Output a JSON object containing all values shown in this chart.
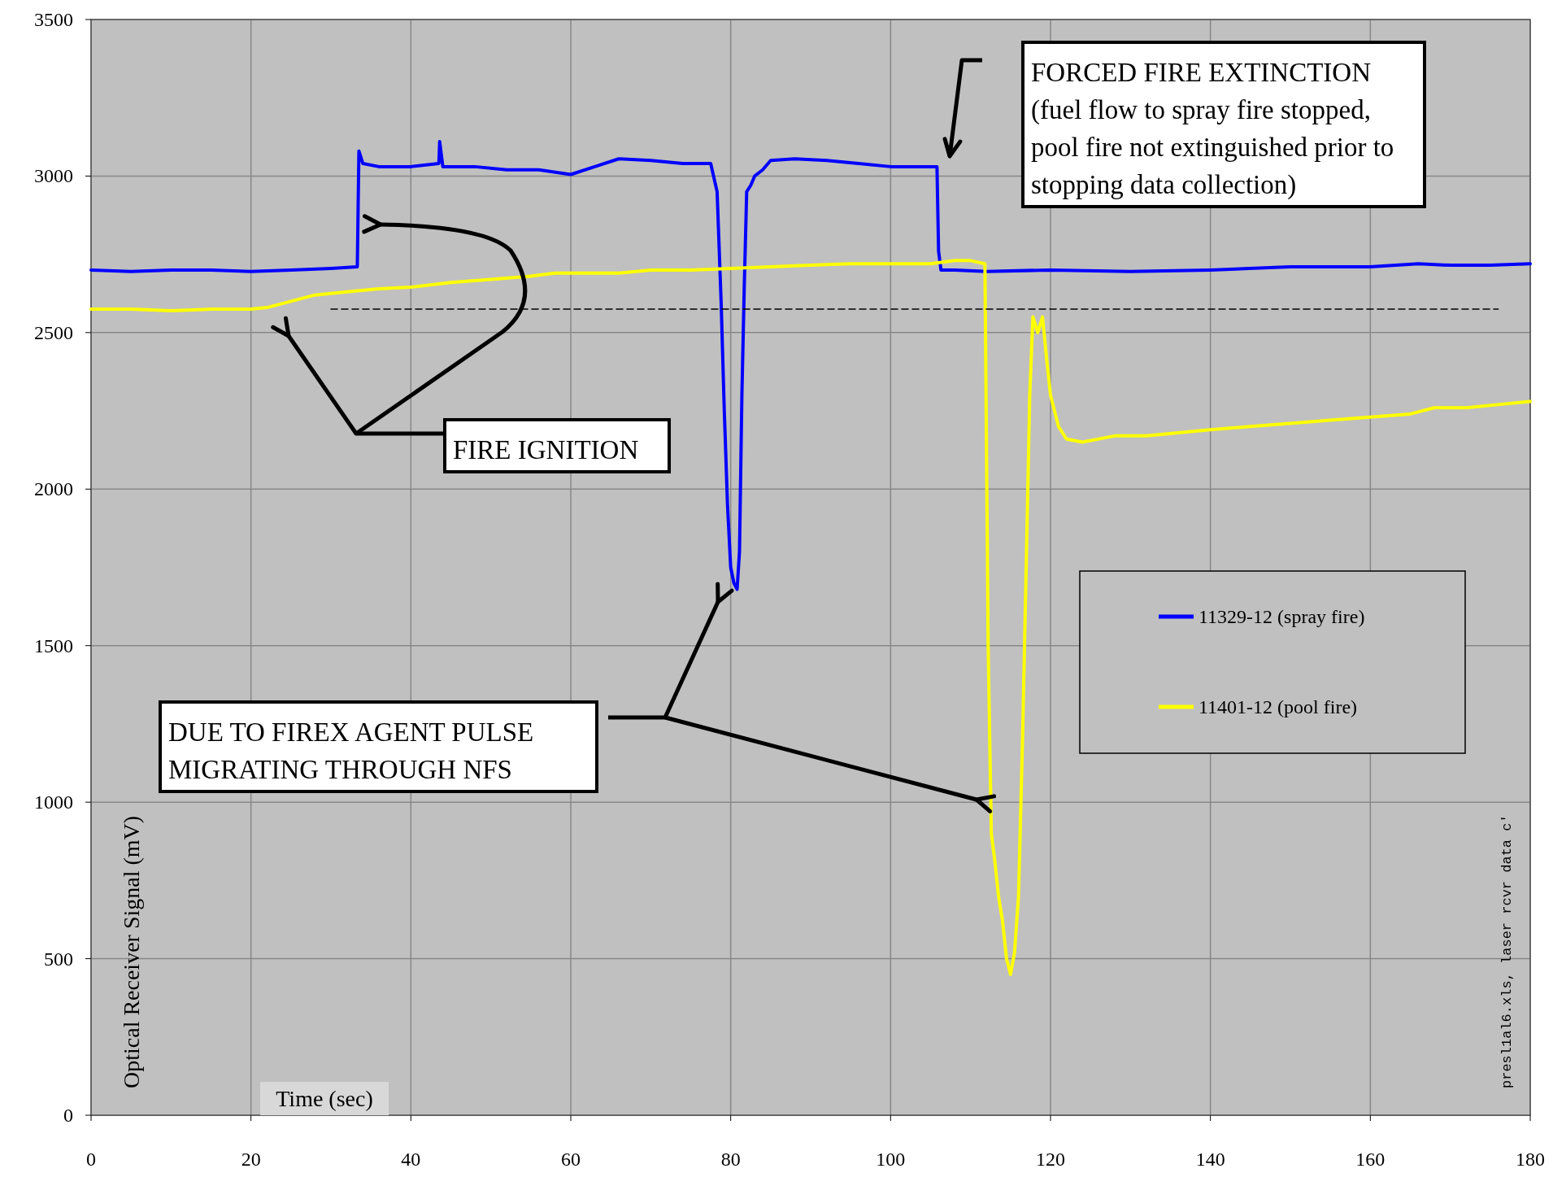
{
  "chart_data": {
    "type": "line",
    "xlabel": "Time (sec)",
    "ylabel": "Optical Receiver Signal (mV)",
    "xlim": [
      0,
      180
    ],
    "xticks": [
      0,
      20,
      40,
      60,
      80,
      100,
      120,
      140,
      160,
      180
    ],
    "ylim": [
      0,
      3500
    ],
    "yticks": [
      0,
      500,
      1000,
      1500,
      2000,
      2500,
      3000,
      3500
    ],
    "grid": true,
    "legend": "right",
    "marker": "none",
    "line_style": "solid",
    "series": [
      {
        "name": "11329-12 (spray fire)",
        "color": "#0000ff",
        "x": [
          0,
          5,
          10,
          15,
          20,
          25,
          30,
          33.3,
          33.5,
          34,
          36,
          40,
          43.5,
          43.6,
          44,
          48,
          52,
          56,
          60,
          63,
          66,
          70,
          74,
          77.5,
          78.3,
          78.8,
          79.2,
          79.6,
          80,
          80.4,
          80.8,
          81.1,
          81.4,
          81.7,
          82,
          82.5,
          83,
          84,
          85,
          88,
          92,
          96,
          100,
          103,
          105.8,
          106,
          106.3,
          108,
          112,
          120,
          130,
          140,
          150,
          160,
          166,
          170,
          175,
          180
        ],
        "values": [
          2700,
          2695,
          2700,
          2700,
          2695,
          2700,
          2705,
          2710,
          3080,
          3040,
          3030,
          3030,
          3040,
          3110,
          3030,
          3030,
          3020,
          3020,
          3005,
          3030,
          3055,
          3050,
          3040,
          3040,
          2950,
          2600,
          2250,
          1950,
          1750,
          1700,
          1680,
          1800,
          2300,
          2650,
          2950,
          2970,
          3000,
          3020,
          3050,
          3055,
          3050,
          3040,
          3030,
          3030,
          3030,
          2760,
          2700,
          2700,
          2695,
          2700,
          2695,
          2700,
          2710,
          2710,
          2720,
          2715,
          2715,
          2720
        ]
      },
      {
        "name": "11401-12 (pool fire)",
        "color": "#ffff00",
        "x": [
          0,
          5,
          10,
          15,
          20,
          22,
          25,
          28,
          32,
          36,
          40,
          45,
          50,
          55,
          58,
          62,
          66,
          70,
          75,
          80,
          85,
          90,
          95,
          100,
          105,
          108,
          110,
          111.8,
          112.2,
          112.6,
          113,
          113.5,
          114,
          114.5,
          115,
          115.5,
          116,
          116.5,
          117,
          117.4,
          117.8,
          118.4,
          119,
          119.5,
          120,
          121,
          122,
          124,
          128,
          132,
          136,
          140,
          145,
          150,
          155,
          160,
          165,
          168,
          172,
          176,
          180
        ],
        "values": [
          2575,
          2575,
          2570,
          2575,
          2575,
          2580,
          2600,
          2620,
          2630,
          2640,
          2645,
          2660,
          2670,
          2680,
          2690,
          2690,
          2690,
          2700,
          2700,
          2705,
          2710,
          2715,
          2720,
          2720,
          2720,
          2730,
          2730,
          2720,
          1500,
          900,
          820,
          700,
          620,
          500,
          450,
          520,
          700,
          1200,
          1800,
          2300,
          2550,
          2500,
          2550,
          2420,
          2300,
          2200,
          2160,
          2150,
          2170,
          2170,
          2180,
          2190,
          2200,
          2210,
          2220,
          2230,
          2240,
          2260,
          2260,
          2270,
          2280
        ]
      },
      {
        "type": "line",
        "color": "#000000",
        "line_style": "dashed",
        "x": [
          30,
          176
        ],
        "values": [
          2575,
          2575
        ]
      }
    ],
    "annotations": [
      "FORCED FIRE EXTINCTION\n(fuel flow to spray fire stopped,\npool fire not extinguished prior to\nstopping data collection)",
      "FIRE IGNITION",
      "DUE TO FIREX AGENT PULSE\nMIGRATING THROUGH NFS",
      "presl1al6.xls, laser rcvr data c'"
    ]
  }
}
